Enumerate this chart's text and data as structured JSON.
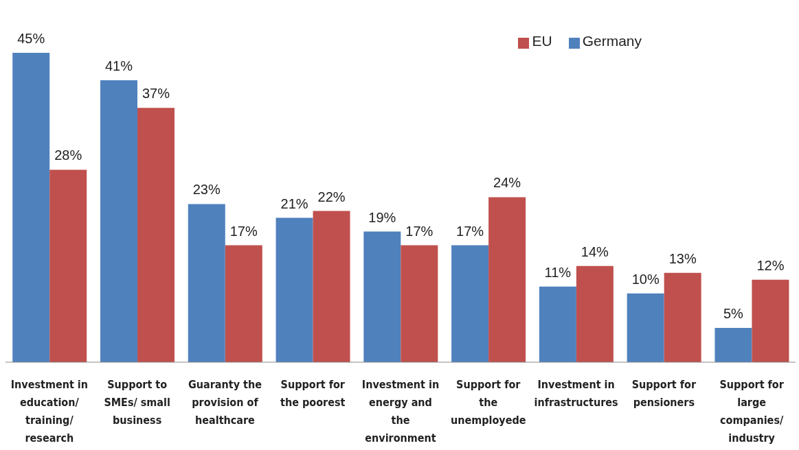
{
  "chart_data": {
    "type": "bar",
    "categories": [
      "Investment in education/ training/ research",
      "Support to SMEs/ small business",
      "Guaranty the provision of healthcare",
      "Support for the poorest",
      "Investment in energy and the environment",
      "Support for the unemployede",
      "Investment in infrastructures",
      "Support for pensioners",
      "Support for large companies/ industry"
    ],
    "series": [
      {
        "name": "Germany",
        "color": "#4f81bd",
        "values": [
          45,
          41,
          23,
          21,
          19,
          17,
          11,
          10,
          5
        ],
        "value_labels": [
          "45%",
          "41%",
          "23%",
          "21%",
          "19%",
          "17%",
          "11%",
          "10%",
          "5%"
        ]
      },
      {
        "name": "EU",
        "color": "#c0504d",
        "values": [
          28,
          37,
          17,
          22,
          17,
          24,
          14,
          13,
          12
        ],
        "value_labels": [
          "28%",
          "37%",
          "17%",
          "22%",
          "17%",
          "24%",
          "14%",
          "13%",
          "12%"
        ]
      }
    ],
    "legend": "top right",
    "grid": false
  }
}
